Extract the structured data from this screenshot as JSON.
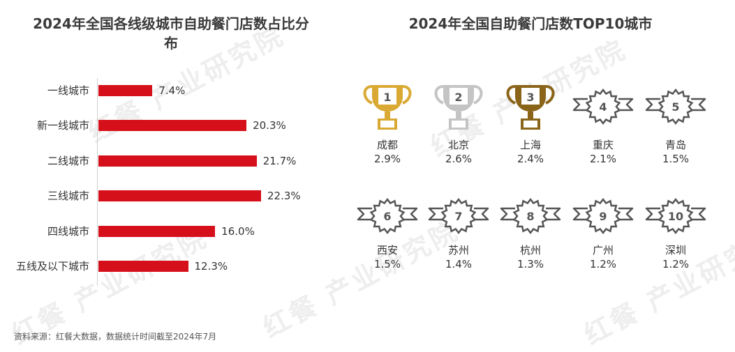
{
  "watermark": "红餐 产业研究院",
  "source": "资料来源：红餐大数据，数据统计时间截至2024年7月",
  "colors": {
    "bar": "#d6101a",
    "gold": "#d9a933",
    "silver": "#c4c4c4",
    "bronze": "#8a6418",
    "badge": "#555555"
  },
  "chart_data": [
    {
      "type": "bar",
      "orientation": "horizontal",
      "title": "2024年全国各线级城市自助餐门店数占比分布",
      "categories": [
        "一线城市",
        "新一线城市",
        "二线城市",
        "三线城市",
        "四线城市",
        "五线及以下城市"
      ],
      "values": [
        7.4,
        20.3,
        21.7,
        22.3,
        16.0,
        12.3
      ],
      "value_labels": [
        "7.4%",
        "20.3%",
        "21.7%",
        "22.3%",
        "16.0%",
        "12.3%"
      ],
      "unit": "%",
      "xlim": [
        0,
        22.3
      ],
      "grid": false
    },
    {
      "type": "table",
      "title": "2024年全国自助餐门店数TOP10城市",
      "ranks": [
        {
          "rank": "1",
          "city": "成都",
          "share": "2.9%",
          "icon": "trophy-gold"
        },
        {
          "rank": "2",
          "city": "北京",
          "share": "2.6%",
          "icon": "trophy-silver"
        },
        {
          "rank": "3",
          "city": "上海",
          "share": "2.4%",
          "icon": "trophy-bronze"
        },
        {
          "rank": "4",
          "city": "重庆",
          "share": "2.1%",
          "icon": "ribbon-badge"
        },
        {
          "rank": "5",
          "city": "青岛",
          "share": "1.5%",
          "icon": "ribbon-badge"
        },
        {
          "rank": "6",
          "city": "西安",
          "share": "1.5%",
          "icon": "ribbon-badge"
        },
        {
          "rank": "7",
          "city": "苏州",
          "share": "1.4%",
          "icon": "ribbon-badge"
        },
        {
          "rank": "8",
          "city": "杭州",
          "share": "1.3%",
          "icon": "ribbon-badge"
        },
        {
          "rank": "9",
          "city": "广州",
          "share": "1.2%",
          "icon": "ribbon-badge"
        },
        {
          "rank": "10",
          "city": "深圳",
          "share": "1.2%",
          "icon": "ribbon-badge"
        }
      ]
    }
  ]
}
